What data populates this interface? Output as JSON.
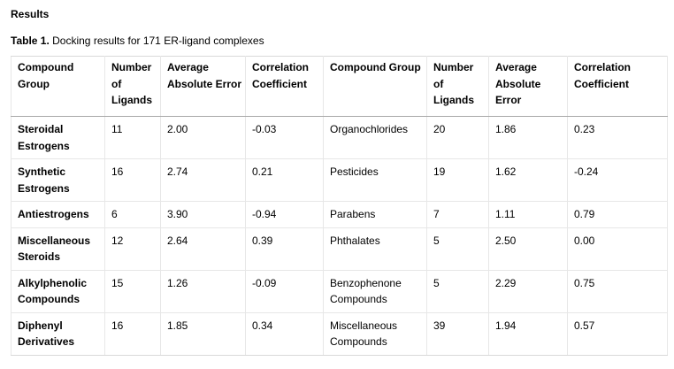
{
  "section_heading": "Results",
  "caption": {
    "label": "Table 1.",
    "text": " Docking results for 171 ER-ligand complexes"
  },
  "table": {
    "headers": [
      "Compound Group",
      "Number of Ligands",
      "Average Absolute Error",
      "Correlation Coefficient",
      "Compound Group",
      "Number of Ligands",
      "Average Absolute Error",
      "Correlation Coefficient"
    ],
    "rows": [
      [
        "Steroidal Estrogens",
        "11",
        "2.00",
        "-0.03",
        "Organochlorides",
        "20",
        "1.86",
        "0.23"
      ],
      [
        "Synthetic Estrogens",
        "16",
        "2.74",
        "0.21",
        "Pesticides",
        "19",
        "1.62",
        "-0.24"
      ],
      [
        "Antiestrogens",
        "6",
        "3.90",
        "-0.94",
        "Parabens",
        "7",
        "1.11",
        "0.79"
      ],
      [
        "Miscellaneous Steroids",
        "12",
        "2.64",
        "0.39",
        "Phthalates",
        "5",
        "2.50",
        "0.00"
      ],
      [
        "Alkylphenolic Compounds",
        "15",
        "1.26",
        "-0.09",
        "Benzophenone Compounds",
        "5",
        "2.29",
        "0.75"
      ],
      [
        "Diphenyl Derivatives",
        "16",
        "1.85",
        "0.34",
        "Miscellaneous Compounds",
        "39",
        "1.94",
        "0.57"
      ]
    ]
  }
}
